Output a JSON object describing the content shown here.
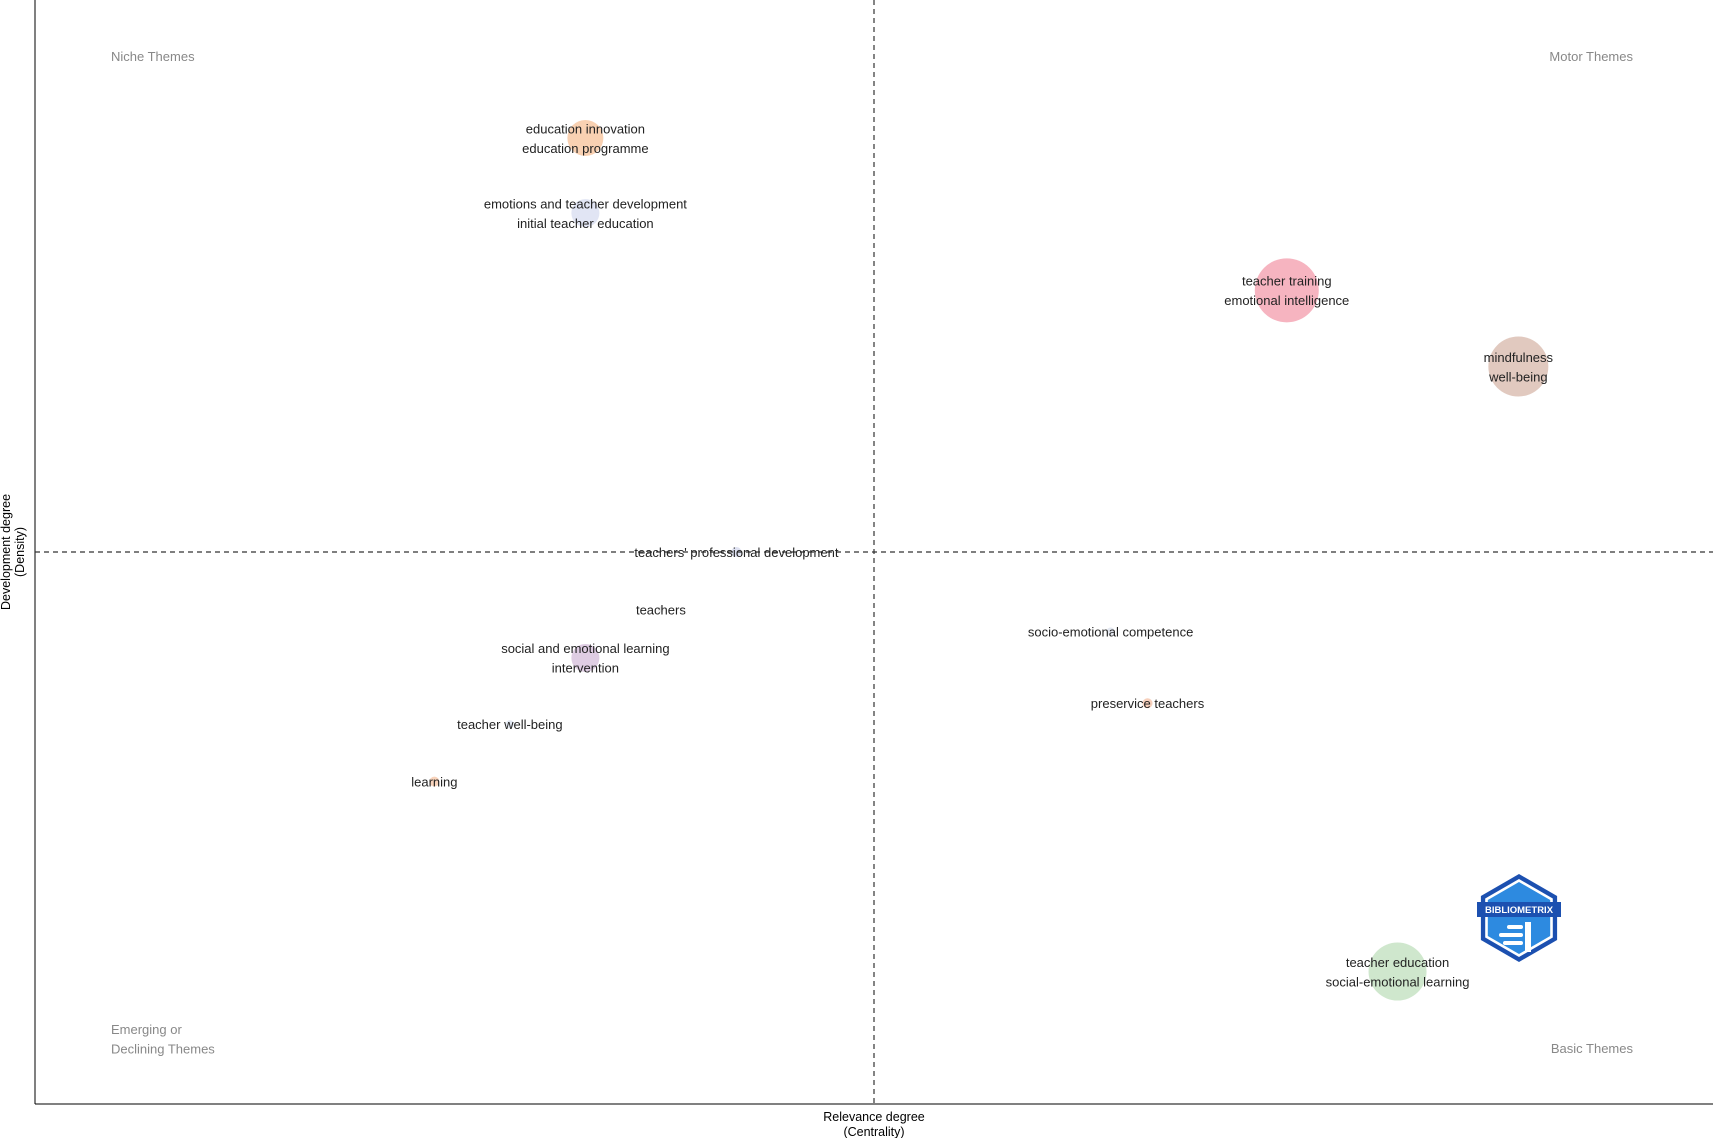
{
  "chart_data": {
    "type": "scatter",
    "title": "",
    "xlabel": [
      "Relevance degree",
      "(Centrality)"
    ],
    "ylabel": [
      "Development degree",
      "(Density)"
    ],
    "quadrants": {
      "top_left": [
        "Niche Themes"
      ],
      "top_right": [
        "Motor Themes"
      ],
      "bottom_left": [
        "Emerging or",
        "Declining Themes"
      ],
      "bottom_right": [
        "Basic Themes"
      ]
    },
    "grid": false,
    "x_divider": 0.5,
    "y_divider": 0.5,
    "points": [
      {
        "lines": [
          "education innovation",
          "education programme"
        ],
        "x": 0.328,
        "y": 0.875,
        "size": 18,
        "color": "#f8c9a4"
      },
      {
        "lines": [
          "emotions and teacher development",
          "initial teacher education"
        ],
        "x": 0.328,
        "y": 0.807,
        "size": 14,
        "color": "#dce0f2"
      },
      {
        "lines": [
          "teacher training",
          "emotional intelligence"
        ],
        "x": 0.746,
        "y": 0.737,
        "size": 32,
        "color": "#f4a7b5"
      },
      {
        "lines": [
          "mindfulness",
          "well-being"
        ],
        "x": 0.884,
        "y": 0.668,
        "size": 30,
        "color": "#dcbfb4"
      },
      {
        "lines": [
          "teachers' professional development"
        ],
        "x": 0.418,
        "y": 0.5,
        "size": 5,
        "color": "#d8dcef"
      },
      {
        "lines": [
          "teachers"
        ],
        "x": 0.373,
        "y": 0.448,
        "size": 3,
        "color": "#e6e6e6"
      },
      {
        "lines": [
          "social and emotional learning",
          "intervention"
        ],
        "x": 0.328,
        "y": 0.404,
        "size": 14,
        "color": "#d9c4de"
      },
      {
        "lines": [
          "teacher well-being"
        ],
        "x": 0.283,
        "y": 0.344,
        "size": 4,
        "color": "#dde4f0"
      },
      {
        "lines": [
          "learning"
        ],
        "x": 0.238,
        "y": 0.292,
        "size": 5,
        "color": "#f8cdb0"
      },
      {
        "lines": [
          "socio-emotional competence"
        ],
        "x": 0.641,
        "y": 0.428,
        "size": 4,
        "color": "#dfe4ee"
      },
      {
        "lines": [
          "preservice teachers"
        ],
        "x": 0.663,
        "y": 0.363,
        "size": 5,
        "color": "#f6c8b0"
      },
      {
        "lines": [
          "teacher education",
          "social-emotional learning"
        ],
        "x": 0.812,
        "y": 0.12,
        "size": 29,
        "color": "#c7e3c4"
      }
    ]
  },
  "watermark": {
    "text": "BIBLIOMETRIX",
    "color_dark": "#1c50b0",
    "color_light": "#2d8ae0"
  }
}
